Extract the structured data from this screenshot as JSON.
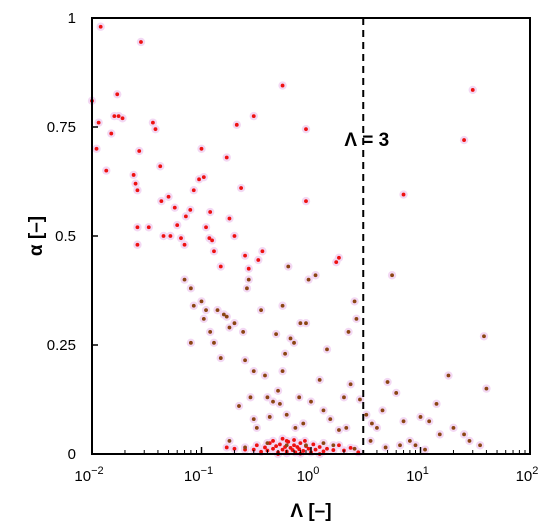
{
  "chart_data": {
    "type": "scatter",
    "title": "",
    "xlabel": "Λ [–]",
    "ylabel": "α [–]",
    "xscale": "log",
    "xlim": [
      0.01,
      100
    ],
    "ylim": [
      0,
      1
    ],
    "grid": false,
    "x_ticks": [
      {
        "value": 0.01,
        "base": "10",
        "exp": "−2"
      },
      {
        "value": 0.1,
        "base": "10",
        "exp": "−1"
      },
      {
        "value": 1,
        "base": "10",
        "exp": "0"
      },
      {
        "value": 10,
        "base": "10",
        "exp": "1"
      },
      {
        "value": 100,
        "base": "10",
        "exp": "2"
      }
    ],
    "y_ticks": [
      {
        "value": 0,
        "label": "0"
      },
      {
        "value": 0.25,
        "label": "0.25"
      },
      {
        "value": 0.5,
        "label": "0.5"
      },
      {
        "value": 0.75,
        "label": "0.75"
      },
      {
        "value": 1,
        "label": "1"
      }
    ],
    "reference_line": {
      "x": 3,
      "label": "Λ = 3"
    },
    "colors": {
      "red_points": "#ee1111",
      "brown_points": "#8b4513",
      "halo": "#f3d8f3"
    },
    "series": [
      {
        "color": "#ee1111",
        "points": [
          [
            0.012,
            0.98
          ],
          [
            0.028,
            0.945
          ],
          [
            0.01,
            0.81
          ],
          [
            0.017,
            0.825
          ],
          [
            0.011,
            0.7
          ],
          [
            0.0115,
            0.76
          ],
          [
            0.0135,
            0.65
          ],
          [
            0.015,
            0.735
          ],
          [
            0.016,
            0.775
          ],
          [
            0.0175,
            0.775
          ],
          [
            0.019,
            0.77
          ],
          [
            0.024,
            0.64
          ],
          [
            0.025,
            0.62
          ],
          [
            0.026,
            0.605
          ],
          [
            0.027,
            0.695
          ],
          [
            0.026,
            0.52
          ],
          [
            0.026,
            0.48
          ],
          [
            0.033,
            0.52
          ],
          [
            0.036,
            0.76
          ],
          [
            0.038,
            0.745
          ],
          [
            0.042,
            0.66
          ],
          [
            0.043,
            0.58
          ],
          [
            0.045,
            0.5
          ],
          [
            0.05,
            0.59
          ],
          [
            0.052,
            0.5
          ],
          [
            0.057,
            0.565
          ],
          [
            0.06,
            0.525
          ],
          [
            0.065,
            0.495
          ],
          [
            0.07,
            0.48
          ],
          [
            0.072,
            0.545
          ],
          [
            0.079,
            0.56
          ],
          [
            0.085,
            0.605
          ],
          [
            0.095,
            0.63
          ],
          [
            0.1,
            0.7
          ],
          [
            0.105,
            0.635
          ],
          [
            0.11,
            0.52
          ],
          [
            0.118,
            0.495
          ],
          [
            0.12,
            0.555
          ],
          [
            0.125,
            0.49
          ],
          [
            0.13,
            0.465
          ],
          [
            0.15,
            0.43
          ],
          [
            0.17,
            0.68
          ],
          [
            0.18,
            0.54
          ],
          [
            0.2,
            0.5
          ],
          [
            0.21,
            0.755
          ],
          [
            0.23,
            0.61
          ],
          [
            0.25,
            0.455
          ],
          [
            0.27,
            0.425
          ],
          [
            0.3,
            0.775
          ],
          [
            0.33,
            0.445
          ],
          [
            0.36,
            0.465
          ],
          [
            0.55,
            0.845
          ],
          [
            0.9,
            0.745
          ],
          [
            0.9,
            0.58
          ],
          [
            1.7,
            0.44
          ],
          [
            1.8,
            0.45
          ],
          [
            7.0,
            0.595
          ],
          [
            25,
            0.72
          ],
          [
            30,
            0.835
          ],
          [
            0.17,
            0.015
          ],
          [
            0.2,
            0.012
          ],
          [
            0.25,
            0.01
          ],
          [
            0.3,
            0.01
          ],
          [
            0.32,
            0.02
          ],
          [
            0.35,
            0.005
          ],
          [
            0.38,
            0.015
          ],
          [
            0.4,
            0.008
          ],
          [
            0.42,
            0.025
          ],
          [
            0.45,
            0.012
          ],
          [
            0.48,
            0.018
          ],
          [
            0.5,
            0.004
          ],
          [
            0.52,
            0.022
          ],
          [
            0.55,
            0.01
          ],
          [
            0.58,
            0.016
          ],
          [
            0.6,
            0.006
          ],
          [
            0.62,
            0.028
          ],
          [
            0.65,
            0.014
          ],
          [
            0.68,
            0.009
          ],
          [
            0.7,
            0.02
          ],
          [
            0.72,
            0.004
          ],
          [
            0.75,
            0.016
          ],
          [
            0.78,
            0.011
          ],
          [
            0.8,
            0.025
          ],
          [
            0.85,
            0.007
          ],
          [
            0.9,
            0.018
          ],
          [
            0.95,
            0.012
          ],
          [
            1.0,
            0.004
          ],
          [
            1.05,
            0.022
          ],
          [
            1.1,
            0.01
          ],
          [
            1.2,
            0.016
          ],
          [
            1.3,
            0.006
          ],
          [
            1.4,
            0.012
          ],
          [
            1.6,
            0.009
          ],
          [
            1.8,
            0.02
          ],
          [
            2.0,
            0.008
          ],
          [
            2.3,
            0.014
          ],
          [
            2.7,
            0.004
          ],
          [
            0.45,
            0.03
          ],
          [
            0.55,
            0.035
          ],
          [
            0.6,
            0.03
          ],
          [
            0.7,
            0.032
          ],
          [
            0.88,
            0.03
          ],
          [
            0.5,
            0.0
          ],
          [
            0.6,
            0.002
          ],
          [
            0.8,
            0.001
          ],
          [
            1.2,
            0.0
          ]
        ]
      },
      {
        "color": "#8b4513",
        "points": [
          [
            0.07,
            0.4
          ],
          [
            0.08,
            0.38
          ],
          [
            0.085,
            0.34
          ],
          [
            0.08,
            0.255
          ],
          [
            0.1,
            0.35
          ],
          [
            0.11,
            0.33
          ],
          [
            0.105,
            0.31
          ],
          [
            0.12,
            0.28
          ],
          [
            0.13,
            0.255
          ],
          [
            0.14,
            0.33
          ],
          [
            0.15,
            0.22
          ],
          [
            0.16,
            0.32
          ],
          [
            0.17,
            0.315
          ],
          [
            0.18,
            0.29
          ],
          [
            0.2,
            0.3
          ],
          [
            0.22,
            0.11
          ],
          [
            0.24,
            0.28
          ],
          [
            0.25,
            0.215
          ],
          [
            0.26,
            0.38
          ],
          [
            0.27,
            0.4
          ],
          [
            0.28,
            0.13
          ],
          [
            0.3,
            0.19
          ],
          [
            0.3,
            0.08
          ],
          [
            0.32,
            0.06
          ],
          [
            0.35,
            0.33
          ],
          [
            0.38,
            0.18
          ],
          [
            0.4,
            0.13
          ],
          [
            0.42,
            0.085
          ],
          [
            0.45,
            0.12
          ],
          [
            0.48,
            0.275
          ],
          [
            0.5,
            0.145
          ],
          [
            0.52,
            0.115
          ],
          [
            0.55,
            0.34
          ],
          [
            0.55,
            0.19
          ],
          [
            0.58,
            0.23
          ],
          [
            0.6,
            0.09
          ],
          [
            0.62,
            0.43
          ],
          [
            0.65,
            0.265
          ],
          [
            0.7,
            0.255
          ],
          [
            0.72,
            0.06
          ],
          [
            0.78,
            0.13
          ],
          [
            0.8,
            0.3
          ],
          [
            0.85,
            0.07
          ],
          [
            0.9,
            0.3
          ],
          [
            0.95,
            0.4
          ],
          [
            1.0,
            0.12
          ],
          [
            1.1,
            0.41
          ],
          [
            1.2,
            0.17
          ],
          [
            1.3,
            0.1
          ],
          [
            1.4,
            0.24
          ],
          [
            1.5,
            0.08
          ],
          [
            1.6,
            0.02
          ],
          [
            1.8,
            0.055
          ],
          [
            2.0,
            0.13
          ],
          [
            2.1,
            0.06
          ],
          [
            2.2,
            0.28
          ],
          [
            2.3,
            0.16
          ],
          [
            2.5,
            0.35
          ],
          [
            2.6,
            0.31
          ],
          [
            2.8,
            0.125
          ],
          [
            3.2,
            0.09
          ],
          [
            3.6,
            0.07
          ],
          [
            4.0,
            0.06
          ],
          [
            4.5,
            0.1
          ],
          [
            5.0,
            0.165
          ],
          [
            5.5,
            0.41
          ],
          [
            6.0,
            0.14
          ],
          [
            7.0,
            0.075
          ],
          [
            8.0,
            0.03
          ],
          [
            9.0,
            0.02
          ],
          [
            10,
            0.085
          ],
          [
            12,
            0.075
          ],
          [
            14,
            0.115
          ],
          [
            15,
            0.045
          ],
          [
            18,
            0.18
          ],
          [
            20,
            0.06
          ],
          [
            25,
            0.045
          ],
          [
            28,
            0.03
          ],
          [
            35,
            0.02
          ],
          [
            38,
            0.27
          ],
          [
            40,
            0.15
          ],
          [
            0.18,
            0.03
          ],
          [
            0.25,
            0.015
          ],
          [
            0.4,
            0.025
          ],
          [
            0.6,
            0.02
          ],
          [
            0.9,
            0.02
          ],
          [
            1.3,
            0.025
          ],
          [
            2.5,
            0.012
          ],
          [
            3.5,
            0.03
          ],
          [
            4.8,
            0.015
          ],
          [
            6.5,
            0.02
          ],
          [
            11,
            0.01
          ]
        ]
      }
    ]
  }
}
